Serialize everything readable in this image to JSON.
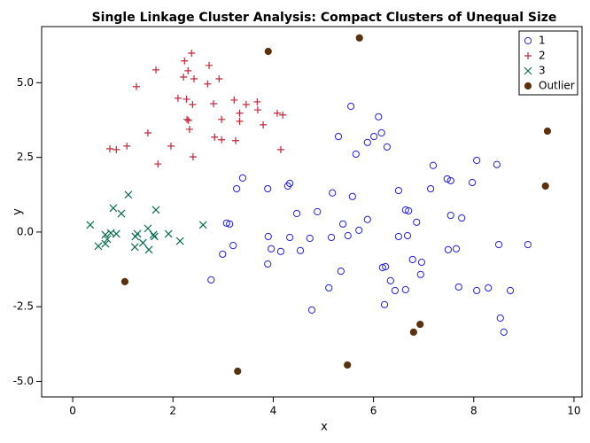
{
  "chart_data": {
    "type": "scatter",
    "title": "Single Linkage Cluster Analysis: Compact Clusters of Unequal Size",
    "x_label": "x",
    "y_label": "y",
    "xlim": [
      -0.62,
      10.16
    ],
    "ylim": [
      -5.52,
      6.88
    ],
    "xticks": [
      0,
      2,
      4,
      6,
      8,
      10
    ],
    "yticks": [
      {
        "value": -5,
        "label": "-5.0"
      },
      {
        "value": -2.5,
        "label": "-2.5"
      },
      {
        "value": 0,
        "label": "0.0"
      },
      {
        "value": 2.5,
        "label": "2.5"
      },
      {
        "value": 5,
        "label": "5.0"
      }
    ],
    "legend": "top-right",
    "series": [
      {
        "name": "1",
        "color": "#2222d6",
        "marker": "circle",
        "x": [
          5.55,
          6.1,
          5.3,
          6.01,
          6.16,
          5.88,
          6.27,
          5.65,
          7.19,
          8.06,
          8.46,
          3.39,
          3.27,
          3.89,
          4.33,
          4.29,
          5.18,
          5.58,
          6.5,
          7.14,
          7.47,
          7.54,
          7.97,
          4.47,
          4.88,
          5.88,
          6.64,
          6.7,
          7.54,
          7.76,
          6.86,
          3.07,
          3.13,
          5.39,
          5.71,
          3.9,
          4.33,
          3.2,
          3.96,
          4.15,
          4.54,
          4.73,
          5.16,
          5.49,
          6.5,
          6.68,
          7.49,
          7.65,
          8.5,
          9.08,
          2.99,
          3.89,
          5.35,
          6.18,
          6.24,
          6.78,
          6.96,
          6.94,
          6.34,
          6.43,
          6.64,
          5.11,
          2.76,
          7.7,
          8.06,
          8.29,
          8.73,
          6.22,
          4.77,
          8.53,
          8.6
        ],
        "y": [
          4.21,
          3.86,
          3.2,
          3.2,
          3.32,
          3.0,
          2.85,
          2.61,
          2.23,
          2.4,
          2.26,
          1.81,
          1.45,
          1.45,
          1.63,
          1.54,
          1.31,
          1.19,
          1.39,
          1.45,
          1.78,
          1.72,
          1.66,
          0.62,
          0.68,
          0.42,
          0.74,
          0.71,
          0.56,
          0.47,
          0.33,
          0.3,
          0.27,
          0.27,
          0.06,
          -0.15,
          -0.18,
          -0.45,
          -0.56,
          -0.65,
          -0.62,
          -0.21,
          -0.18,
          -0.12,
          -0.15,
          -0.12,
          -0.59,
          -0.56,
          -0.42,
          -0.42,
          -0.74,
          -1.07,
          -1.31,
          -1.19,
          -1.16,
          -0.92,
          -1.01,
          -1.42,
          -1.63,
          -1.96,
          -1.93,
          -1.87,
          -1.6,
          -1.84,
          -1.96,
          -1.87,
          -1.96,
          -2.43,
          -2.61,
          -2.88,
          -3.35
        ]
      },
      {
        "name": "2",
        "color": "#c0283a",
        "marker": "plus",
        "x": [
          2.37,
          2.23,
          2.72,
          2.3,
          1.66,
          2.92,
          2.42,
          2.21,
          2.69,
          1.27,
          2.1,
          2.27,
          3.22,
          2.81,
          2.39,
          3.46,
          3.68,
          3.69,
          3.33,
          4.08,
          4.19,
          2.28,
          2.31,
          3.33,
          3.8,
          2.97,
          1.5,
          2.33,
          2.83,
          2.97,
          3.25,
          1.96,
          1.08,
          0.74,
          0.87,
          4.15,
          2.4,
          1.7
        ],
        "y": [
          5.99,
          5.73,
          5.58,
          5.4,
          5.43,
          5.13,
          5.13,
          5.19,
          4.96,
          4.87,
          4.48,
          4.45,
          4.42,
          4.3,
          4.27,
          4.27,
          4.36,
          4.09,
          3.98,
          3.98,
          3.92,
          3.77,
          3.74,
          3.71,
          3.59,
          3.77,
          3.32,
          3.44,
          3.18,
          3.09,
          3.06,
          2.88,
          2.88,
          2.79,
          2.76,
          2.76,
          2.52,
          2.28
        ]
      },
      {
        "name": "3",
        "color": "#0b6b50",
        "marker": "x",
        "x": [
          1.11,
          0.81,
          0.97,
          1.66,
          0.35,
          2.6,
          1.5,
          1.29,
          1.25,
          0.76,
          0.87,
          0.65,
          1.91,
          1.61,
          1.63,
          0.69,
          0.65,
          0.51,
          1.4,
          2.14,
          1.24,
          1.52
        ],
        "y": [
          1.25,
          0.8,
          0.62,
          0.74,
          0.24,
          0.24,
          0.12,
          -0.06,
          -0.15,
          -0.03,
          -0.06,
          -0.09,
          -0.06,
          -0.09,
          -0.15,
          -0.24,
          -0.39,
          -0.47,
          -0.36,
          -0.3,
          -0.5,
          -0.59
        ]
      },
      {
        "name": "Outlier",
        "color": "#5a3210",
        "marker": "dot",
        "x": [
          3.9,
          5.72,
          9.47,
          9.43,
          1.04,
          6.93,
          6.8,
          5.48,
          3.29
        ],
        "y": [
          6.05,
          6.5,
          3.38,
          1.54,
          -1.66,
          -3.09,
          -3.35,
          -4.45,
          -4.66
        ]
      }
    ]
  }
}
